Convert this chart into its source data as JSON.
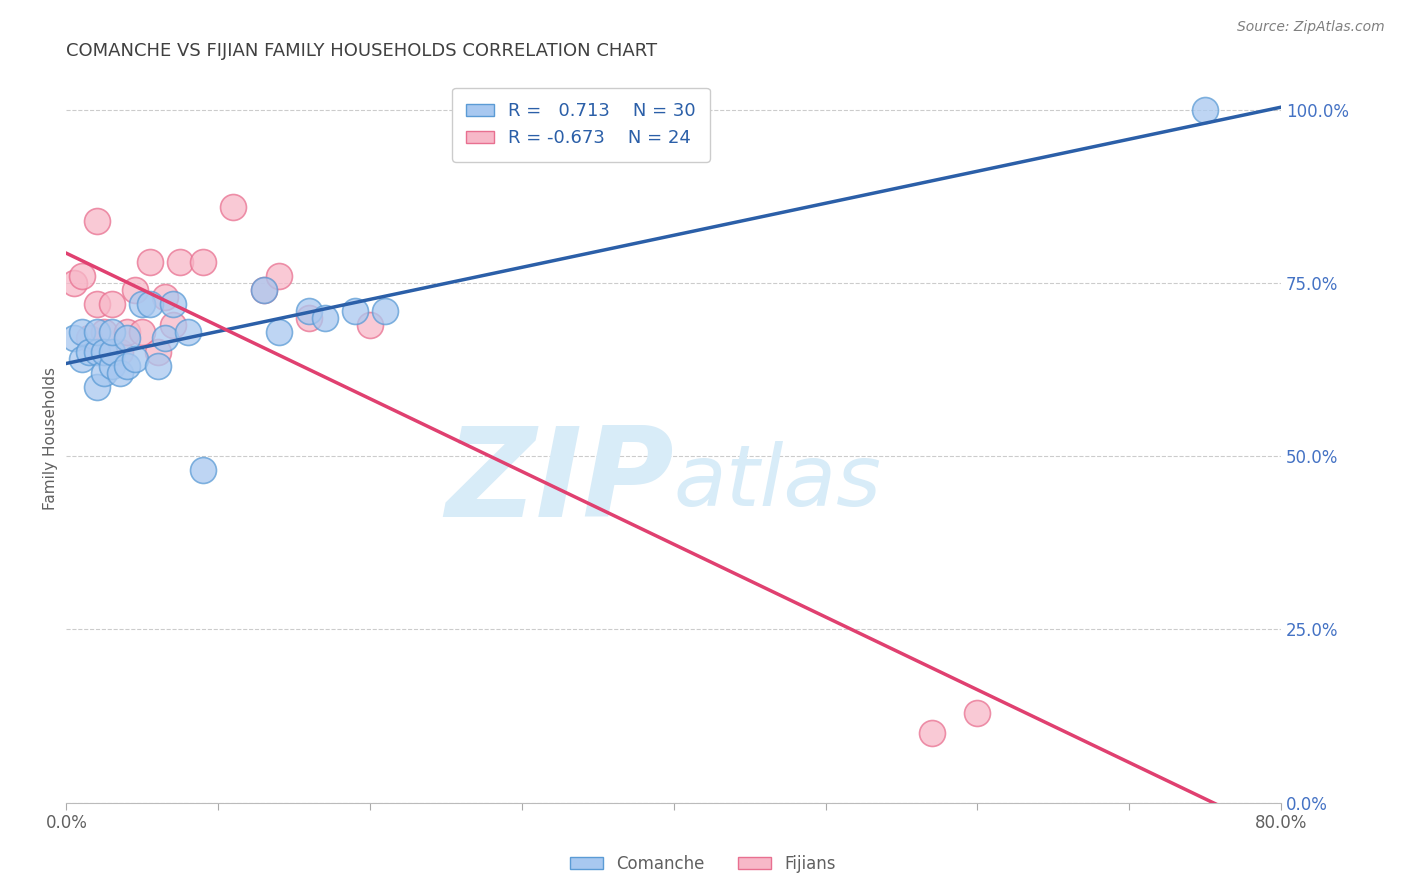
{
  "title": "COMANCHE VS FIJIAN FAMILY HOUSEHOLDS CORRELATION CHART",
  "source": "Source: ZipAtlas.com",
  "ylabel": "Family Households",
  "xlim": [
    0.0,
    0.8
  ],
  "ylim": [
    0.0,
    1.05
  ],
  "yticks": [
    0.0,
    0.25,
    0.5,
    0.75,
    1.0
  ],
  "xticks": [
    0.0,
    0.1,
    0.2,
    0.3,
    0.4,
    0.5,
    0.6,
    0.7,
    0.8
  ],
  "comanche_x": [
    0.005,
    0.01,
    0.01,
    0.015,
    0.02,
    0.02,
    0.02,
    0.025,
    0.025,
    0.03,
    0.03,
    0.03,
    0.035,
    0.04,
    0.04,
    0.045,
    0.05,
    0.055,
    0.06,
    0.065,
    0.07,
    0.08,
    0.09,
    0.13,
    0.14,
    0.16,
    0.17,
    0.19,
    0.21,
    0.75
  ],
  "comanche_y": [
    0.67,
    0.64,
    0.68,
    0.65,
    0.6,
    0.65,
    0.68,
    0.62,
    0.65,
    0.63,
    0.65,
    0.68,
    0.62,
    0.63,
    0.67,
    0.64,
    0.72,
    0.72,
    0.63,
    0.67,
    0.72,
    0.68,
    0.48,
    0.74,
    0.68,
    0.71,
    0.7,
    0.71,
    0.71,
    1.0
  ],
  "fijian_x": [
    0.005,
    0.01,
    0.015,
    0.02,
    0.02,
    0.025,
    0.03,
    0.035,
    0.04,
    0.045,
    0.05,
    0.055,
    0.06,
    0.065,
    0.07,
    0.075,
    0.09,
    0.11,
    0.13,
    0.14,
    0.16,
    0.2,
    0.57,
    0.6
  ],
  "fijian_y": [
    0.75,
    0.76,
    0.67,
    0.72,
    0.84,
    0.68,
    0.72,
    0.65,
    0.68,
    0.74,
    0.68,
    0.78,
    0.65,
    0.73,
    0.69,
    0.78,
    0.78,
    0.86,
    0.74,
    0.76,
    0.7,
    0.69,
    0.1,
    0.13
  ],
  "comanche_R": 0.713,
  "comanche_N": 30,
  "fijian_R": -0.673,
  "fijian_N": 24,
  "comanche_color": "#A8C8F0",
  "comanche_edge_color": "#5B9BD5",
  "comanche_line_color": "#2B5FA8",
  "fijian_color": "#F7B8C8",
  "fijian_edge_color": "#E87090",
  "fijian_line_color": "#E04070",
  "legend_label_color": "#2B5FA8",
  "watermark_color": "#D8ECF8",
  "background_color": "#FFFFFF",
  "grid_color": "#CCCCCC",
  "title_color": "#404040",
  "source_color": "#808080",
  "axis_label_color": "#606060",
  "tick_color": "#606060",
  "right_tick_color": "#4472C4"
}
